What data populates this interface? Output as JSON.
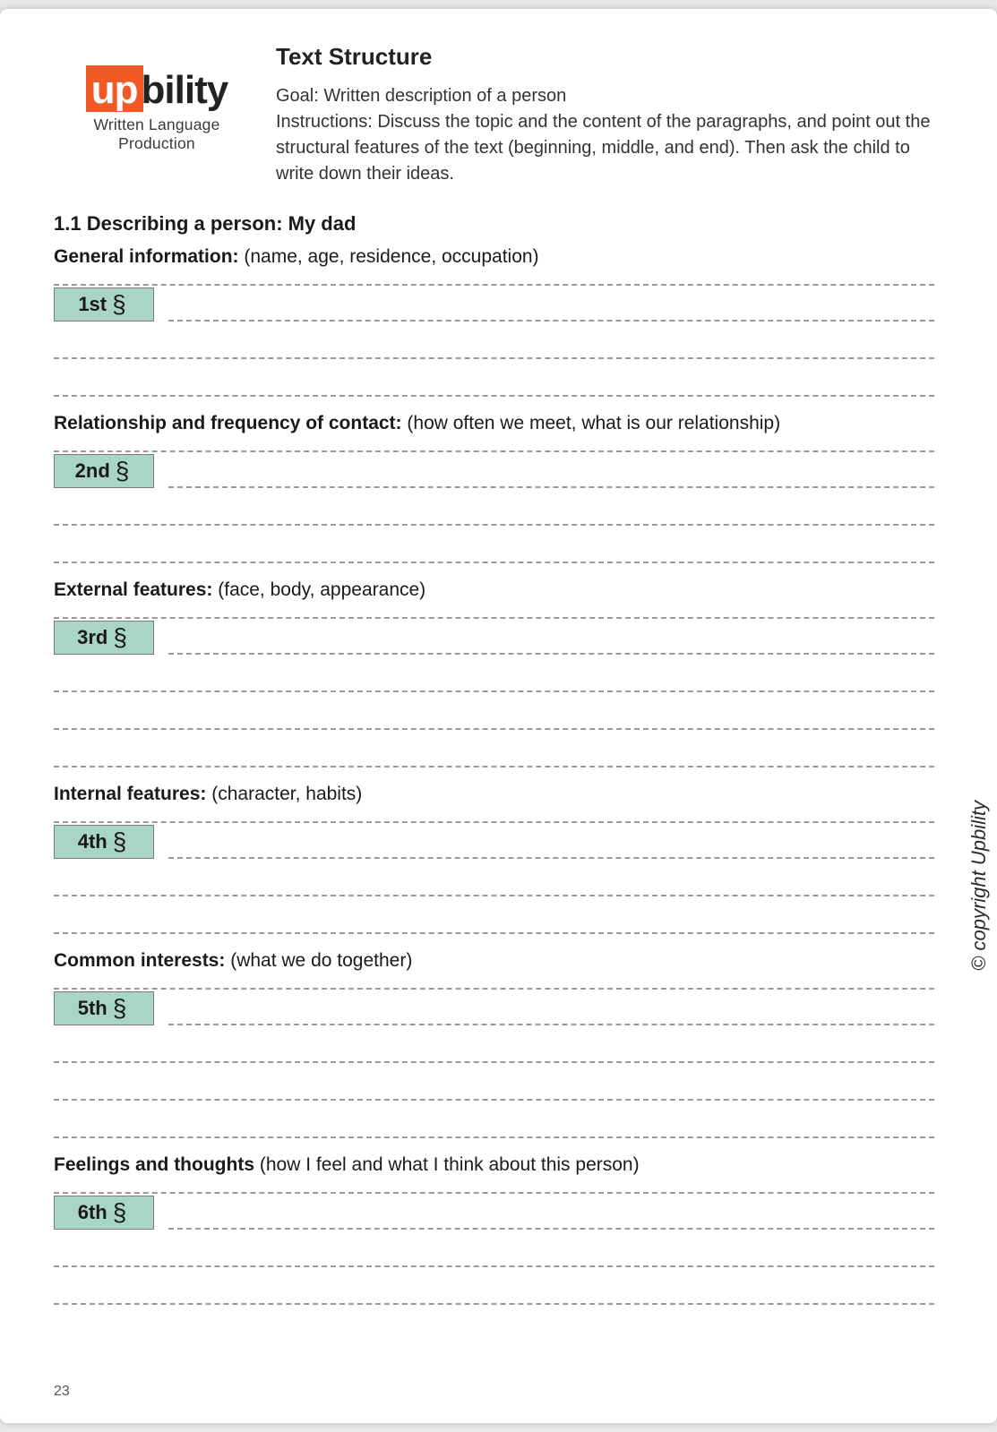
{
  "logo": {
    "box_text": "up",
    "rest_text": "bility",
    "subtitle": "Written Language Production",
    "box_bg": "#f15a24",
    "box_fg": "#ffffff"
  },
  "header": {
    "page_title": "Text Structure",
    "goal_label": "Goal:",
    "goal_text": "Written description of a person",
    "instructions_label": "Instructions:",
    "instructions_text": "Discuss the topic and the content of the paragraphs, and point out the structural features of the text (beginning, middle, and end). Then ask the child to write down their ideas."
  },
  "worksheet": {
    "section_title": "1.1 Describing a person: My dad",
    "paragraph_symbol": "§",
    "tag_bg": "#a9d5c4",
    "tag_border": "#7a7a7a",
    "dash_color": "#9a9a9a",
    "blocks": [
      {
        "prompt_bold": "General information:",
        "prompt_rest": "(name, age, residence, occupation)",
        "tag": "1st",
        "extra_lines": 2
      },
      {
        "prompt_bold": "Relationship and frequency of contact:",
        "prompt_rest": "(how often we meet, what is our relationship)",
        "tag": "2nd",
        "extra_lines": 2
      },
      {
        "prompt_bold": "External features:",
        "prompt_rest": "(face, body, appearance)",
        "tag": "3rd",
        "extra_lines": 3
      },
      {
        "prompt_bold": "Internal features:",
        "prompt_rest": "(character, habits)",
        "tag": "4th",
        "extra_lines": 2
      },
      {
        "prompt_bold": "Common interests:",
        "prompt_rest": "(what we do together)",
        "tag": "5th",
        "extra_lines": 3
      },
      {
        "prompt_bold": "Feelings and thoughts",
        "prompt_rest": "(how I feel and what I think about this person)",
        "tag": "6th",
        "extra_lines": 2
      }
    ]
  },
  "footer": {
    "page_number": "23",
    "copyright": "© copyright Upbility"
  }
}
